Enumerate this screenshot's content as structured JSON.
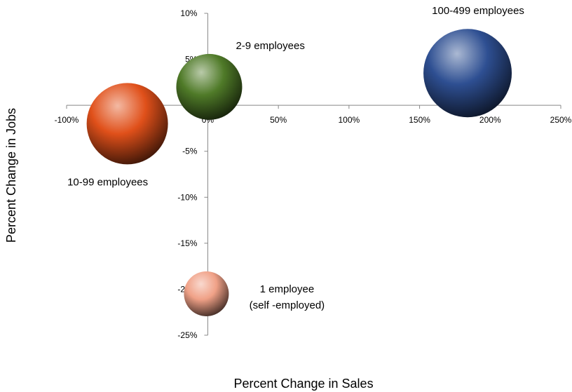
{
  "chart_data": {
    "type": "bubble",
    "xlabel": "Percent Change in Sales",
    "ylabel": "Percent Change in Jobs",
    "xlim": [
      -100,
      250
    ],
    "ylim": [
      -25,
      10
    ],
    "x_ticks": [
      -100,
      -50,
      0,
      50,
      100,
      150,
      200,
      250
    ],
    "y_ticks": [
      10,
      5,
      0,
      -5,
      -10,
      -15,
      -20,
      -25
    ],
    "x_tick_labels": [
      "-100%",
      "-50%",
      "0%",
      "50%",
      "100%",
      "150%",
      "200%",
      "250%"
    ],
    "y_tick_labels": [
      "10%",
      "5%",
      "0%",
      "-5%",
      "-10%",
      "-15%",
      "-20%",
      "-25%"
    ],
    "grid": false,
    "legend": "none",
    "series": [
      {
        "label_lines": [
          "2-9 employees"
        ],
        "x": 1,
        "y": 2,
        "size": 47,
        "color": "#4f7a28",
        "label_pos": "top-right"
      },
      {
        "label_lines": [
          "100-499 employees"
        ],
        "x": 184,
        "y": 3.5,
        "size": 63,
        "color": "#2e4f92",
        "label_pos": "top"
      },
      {
        "label_lines": [
          "10-99 employees"
        ],
        "x": -57,
        "y": -2,
        "size": 58,
        "color": "#e0501a",
        "label_pos": "bottom"
      },
      {
        "label_lines": [
          "1 employee",
          "(self -employed)"
        ],
        "x": -1,
        "y": -20.5,
        "size": 32,
        "color": "#f0a187",
        "label_pos": "right"
      }
    ]
  }
}
